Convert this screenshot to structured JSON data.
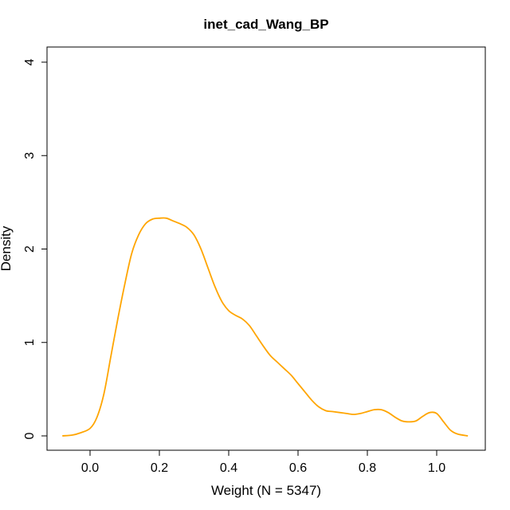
{
  "chart_data": {
    "type": "line",
    "title": "inet_cad_Wang_BP",
    "xlabel": "Weight (N = 5347)",
    "ylabel": "Density",
    "xlim": [
      -0.1,
      1.1
    ],
    "ylim": [
      0,
      4
    ],
    "x_ticks": [
      0.0,
      0.2,
      0.4,
      0.6,
      0.8,
      1.0
    ],
    "x_tick_labels": [
      "0.0",
      "0.2",
      "0.4",
      "0.6",
      "0.8",
      "1.0"
    ],
    "y_ticks": [
      0,
      1,
      2,
      3,
      4
    ],
    "y_tick_labels": [
      "0",
      "1",
      "2",
      "3",
      "4"
    ],
    "grid": false,
    "series": [
      {
        "color": "#FFA500",
        "x": [
          -0.08,
          -0.05,
          -0.03,
          0.0,
          0.02,
          0.04,
          0.06,
          0.08,
          0.1,
          0.12,
          0.14,
          0.16,
          0.18,
          0.2,
          0.22,
          0.24,
          0.26,
          0.28,
          0.3,
          0.32,
          0.34,
          0.36,
          0.38,
          0.4,
          0.42,
          0.44,
          0.46,
          0.48,
          0.5,
          0.52,
          0.54,
          0.56,
          0.58,
          0.6,
          0.62,
          0.64,
          0.66,
          0.68,
          0.7,
          0.72,
          0.74,
          0.76,
          0.78,
          0.8,
          0.82,
          0.84,
          0.86,
          0.88,
          0.9,
          0.92,
          0.94,
          0.96,
          0.98,
          1.0,
          1.02,
          1.04,
          1.06,
          1.09
        ],
        "y": [
          0.0,
          0.01,
          0.03,
          0.08,
          0.2,
          0.45,
          0.85,
          1.25,
          1.62,
          1.95,
          2.15,
          2.27,
          2.32,
          2.33,
          2.33,
          2.3,
          2.27,
          2.23,
          2.15,
          2.0,
          1.8,
          1.6,
          1.44,
          1.34,
          1.29,
          1.25,
          1.18,
          1.07,
          0.96,
          0.86,
          0.79,
          0.72,
          0.65,
          0.56,
          0.47,
          0.38,
          0.31,
          0.27,
          0.26,
          0.25,
          0.24,
          0.23,
          0.24,
          0.26,
          0.28,
          0.28,
          0.25,
          0.2,
          0.16,
          0.15,
          0.16,
          0.21,
          0.25,
          0.24,
          0.15,
          0.06,
          0.02,
          0.0
        ]
      }
    ]
  }
}
